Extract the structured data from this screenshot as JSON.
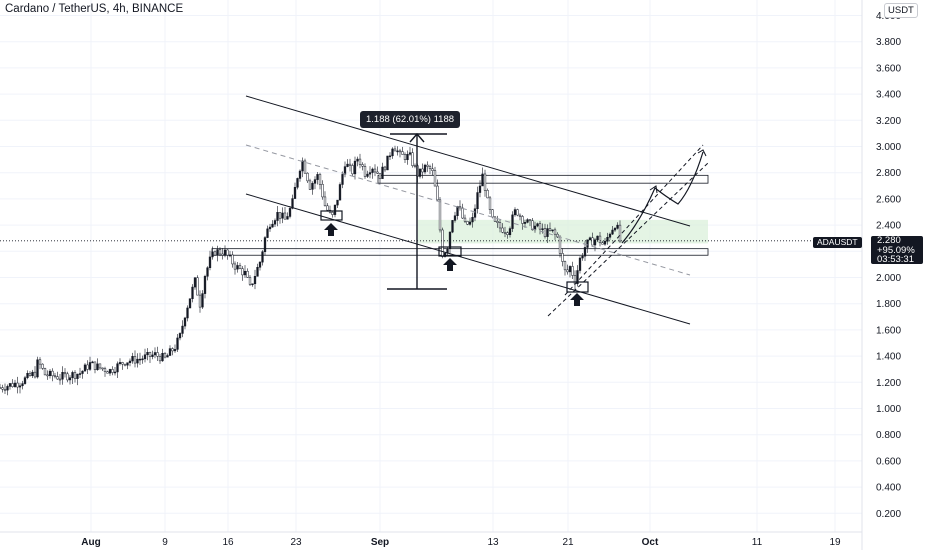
{
  "header": {
    "title": "Cardano / TetherUS, 4h, BINANCE",
    "currency": "USDT"
  },
  "price_badge": {
    "symbol": "ADAUSDT",
    "price": "2.280",
    "change": "+95.09%",
    "countdown": "03:53:31"
  },
  "measure_label": "1.188 (62.01%) 1188",
  "colors": {
    "up_candle": "#131722",
    "down_candle": "#ffffff",
    "zone_fill": "#d9f0d9",
    "grid": "#f0f3fa",
    "line": "#131722"
  },
  "chart_data": {
    "type": "candlestick",
    "title": "Cardano / TetherUS, 4h, BINANCE",
    "xlabel": "",
    "ylabel": "",
    "y_ticks": [
      "0.200",
      "0.400",
      "0.600",
      "0.800",
      "1.000",
      "1.200",
      "1.400",
      "1.600",
      "1.800",
      "2.000",
      "2.200",
      "2.400",
      "2.600",
      "2.800",
      "3.000",
      "3.200",
      "3.400",
      "3.600",
      "3.800",
      "4.000"
    ],
    "x_ticks": [
      "Aug",
      "9",
      "16",
      "23",
      "Sep",
      "13",
      "21",
      "Oct",
      "11",
      "19"
    ],
    "ylim": [
      0.1,
      4.05
    ],
    "grid": true,
    "last_price": 2.28,
    "price_path": [
      [
        0,
        1.16
      ],
      [
        20,
        1.2
      ],
      [
        35,
        1.27
      ],
      [
        38,
        1.36
      ],
      [
        45,
        1.26
      ],
      [
        60,
        1.24
      ],
      [
        80,
        1.27
      ],
      [
        90,
        1.34
      ],
      [
        100,
        1.31
      ],
      [
        110,
        1.29
      ],
      [
        125,
        1.36
      ],
      [
        140,
        1.38
      ],
      [
        155,
        1.41
      ],
      [
        165,
        1.38
      ],
      [
        175,
        1.47
      ],
      [
        180,
        1.55
      ],
      [
        185,
        1.72
      ],
      [
        190,
        1.85
      ],
      [
        195,
        1.97
      ],
      [
        200,
        1.8
      ],
      [
        205,
        2.02
      ],
      [
        210,
        2.13
      ],
      [
        215,
        2.2
      ],
      [
        225,
        2.19
      ],
      [
        235,
        2.09
      ],
      [
        245,
        2.03
      ],
      [
        250,
        1.92
      ],
      [
        255,
        2.02
      ],
      [
        260,
        2.12
      ],
      [
        265,
        2.3
      ],
      [
        270,
        2.42
      ],
      [
        278,
        2.49
      ],
      [
        285,
        2.44
      ],
      [
        292,
        2.55
      ],
      [
        297,
        2.76
      ],
      [
        302,
        2.9
      ],
      [
        310,
        2.7
      ],
      [
        318,
        2.78
      ],
      [
        325,
        2.55
      ],
      [
        332,
        2.45
      ],
      [
        338,
        2.62
      ],
      [
        345,
        2.88
      ],
      [
        352,
        2.8
      ],
      [
        358,
        2.92
      ],
      [
        365,
        2.8
      ],
      [
        372,
        2.85
      ],
      [
        380,
        2.78
      ],
      [
        388,
        2.9
      ],
      [
        393,
        3.02
      ],
      [
        400,
        2.93
      ],
      [
        410,
        2.92
      ],
      [
        418,
        2.78
      ],
      [
        425,
        2.84
      ],
      [
        432,
        2.82
      ],
      [
        438,
        2.55
      ],
      [
        442,
        2.18
      ],
      [
        447,
        2.22
      ],
      [
        452,
        2.45
      ],
      [
        458,
        2.55
      ],
      [
        465,
        2.4
      ],
      [
        472,
        2.42
      ],
      [
        478,
        2.65
      ],
      [
        483,
        2.79
      ],
      [
        488,
        2.55
      ],
      [
        493,
        2.42
      ],
      [
        500,
        2.38
      ],
      [
        508,
        2.36
      ],
      [
        516,
        2.52
      ],
      [
        522,
        2.45
      ],
      [
        530,
        2.4
      ],
      [
        538,
        2.38
      ],
      [
        545,
        2.34
      ],
      [
        552,
        2.35
      ],
      [
        558,
        2.3
      ],
      [
        562,
        2.12
      ],
      [
        566,
        2.02
      ],
      [
        570,
        2.08
      ],
      [
        575,
        1.98
      ],
      [
        580,
        2.14
      ],
      [
        586,
        2.25
      ],
      [
        592,
        2.28
      ],
      [
        598,
        2.3
      ],
      [
        604,
        2.24
      ],
      [
        610,
        2.35
      ],
      [
        616,
        2.42
      ],
      [
        620,
        2.28
      ]
    ],
    "annotations": [
      "Descending channel with two parallel trendlines",
      "Support zone around 2.18-2.22",
      "Resistance zone around 2.73-2.78",
      "Ascending parallel channel from late September",
      "Projected path toward ~2.95"
    ]
  }
}
